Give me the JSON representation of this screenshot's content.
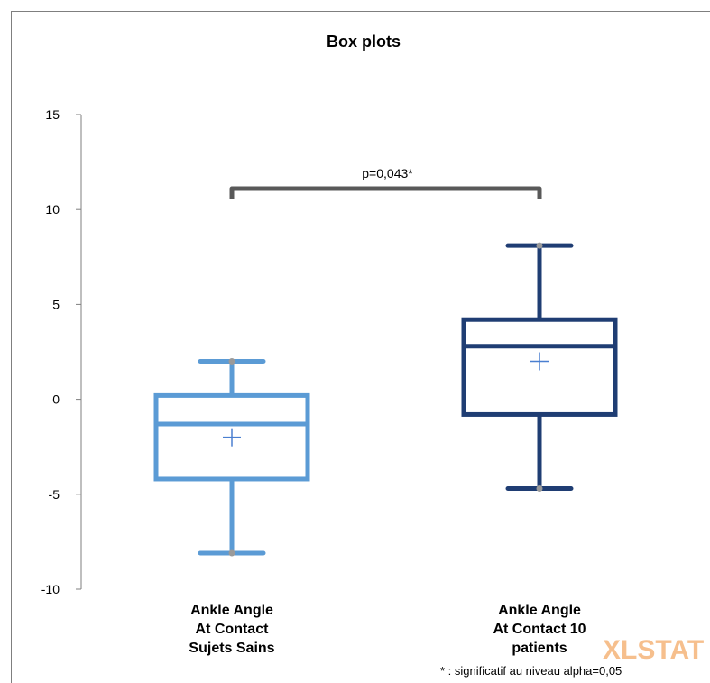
{
  "chart_data": {
    "type": "box",
    "title": "Box plots",
    "ylim": [
      -10,
      15
    ],
    "yticks": [
      "15",
      "10",
      "5",
      "0",
      "-5",
      "-10"
    ],
    "grid": false,
    "categories": [
      {
        "label_lines": [
          "Ankle Angle",
          "At Contact",
          "Sujets  Sains"
        ],
        "color": "#5b9bd5",
        "min": -8.1,
        "q1": -4.2,
        "median": -1.3,
        "q3": 0.2,
        "max": 2.0,
        "mean": -2.0
      },
      {
        "label_lines": [
          "Ankle Angle",
          "At Contact 10",
          "patients"
        ],
        "color": "#1f3d73",
        "min": -4.7,
        "q1": -0.8,
        "median": 2.8,
        "q3": 4.2,
        "max": 8.1,
        "mean": 2.0
      }
    ],
    "significance": {
      "label": "p=0,043*",
      "y": 11.1
    },
    "footnote": "* : significatif au niveau alpha=0,05",
    "watermark": "XLSTAT"
  }
}
